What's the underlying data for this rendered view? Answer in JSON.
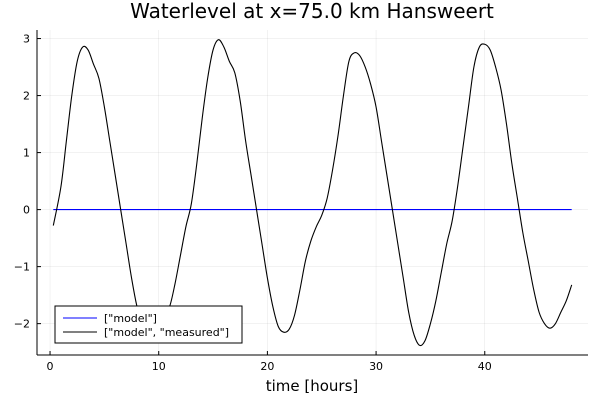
{
  "chart_data": {
    "type": "line",
    "title": "Waterlevel at x=75.0 km Hansweert",
    "xlabel": "time [hours]",
    "ylabel": "",
    "xlim": [
      -1.2,
      49.5
    ],
    "ylim": [
      -2.55,
      3.15
    ],
    "x_ticks": [
      0,
      10,
      20,
      30,
      40
    ],
    "x_tick_labels": [
      "0",
      "10",
      "20",
      "30",
      "40"
    ],
    "y_ticks": [
      -2,
      -1,
      0,
      1,
      2,
      3
    ],
    "y_tick_labels": [
      "−2",
      "−1",
      "0",
      "1",
      "2",
      "3"
    ],
    "grid": true,
    "legend_position": "bottom-left",
    "series": [
      {
        "name": "[\"model\"]",
        "color": "#0000ff",
        "x": [
          0.3,
          48
        ],
        "y": [
          0,
          0
        ]
      },
      {
        "name": "[\"model\", \"measured\"]",
        "color": "#000000",
        "x": [
          0.3,
          1.0,
          1.5,
          2.0,
          2.5,
          3.0,
          3.5,
          4.0,
          4.5,
          5.0,
          5.5,
          6.0,
          6.5,
          7.0,
          7.5,
          8.0,
          8.5,
          9.0,
          9.5,
          10.0,
          10.5,
          11.0,
          11.5,
          12.0,
          12.5,
          13.0,
          13.5,
          14.0,
          14.5,
          15.0,
          15.5,
          16.0,
          16.5,
          17.0,
          17.5,
          18.0,
          18.5,
          19.0,
          19.5,
          20.0,
          20.5,
          21.0,
          21.5,
          22.0,
          22.5,
          23.0,
          23.5,
          24.0,
          24.5,
          25.0,
          25.5,
          26.0,
          26.5,
          27.0,
          27.5,
          28.0,
          28.5,
          29.0,
          29.5,
          30.0,
          30.5,
          31.0,
          31.5,
          32.0,
          32.5,
          33.0,
          33.5,
          34.0,
          34.5,
          35.0,
          35.5,
          36.0,
          36.5,
          37.0,
          37.5,
          38.0,
          38.5,
          39.0,
          39.5,
          40.0,
          40.5,
          41.0,
          41.5,
          42.0,
          42.5,
          43.0,
          43.5,
          44.0,
          44.5,
          45.0,
          45.5,
          46.0,
          46.5,
          47.0,
          47.5,
          48.0
        ],
        "y": [
          -0.28,
          0.4,
          1.2,
          2.0,
          2.6,
          2.85,
          2.8,
          2.55,
          2.3,
          1.8,
          1.2,
          0.6,
          0.0,
          -0.6,
          -1.2,
          -1.7,
          -2.0,
          -2.1,
          -2.0,
          -1.9,
          -1.8,
          -1.7,
          -1.3,
          -0.8,
          -0.3,
          0.1,
          0.8,
          1.6,
          2.3,
          2.8,
          2.98,
          2.85,
          2.6,
          2.4,
          1.9,
          1.2,
          0.6,
          0.0,
          -0.6,
          -1.2,
          -1.7,
          -2.05,
          -2.15,
          -2.1,
          -1.85,
          -1.4,
          -0.9,
          -0.55,
          -0.3,
          -0.1,
          0.2,
          0.7,
          1.3,
          2.0,
          2.6,
          2.75,
          2.7,
          2.5,
          2.2,
          1.8,
          1.2,
          0.6,
          0.0,
          -0.6,
          -1.2,
          -1.8,
          -2.2,
          -2.38,
          -2.3,
          -2.0,
          -1.6,
          -1.1,
          -0.6,
          -0.2,
          0.4,
          1.1,
          1.8,
          2.5,
          2.85,
          2.9,
          2.8,
          2.5,
          2.1,
          1.5,
          0.8,
          0.2,
          -0.4,
          -0.9,
          -1.4,
          -1.8,
          -2.0,
          -2.08,
          -2.0,
          -1.8,
          -1.6,
          -1.32
        ]
      }
    ]
  }
}
